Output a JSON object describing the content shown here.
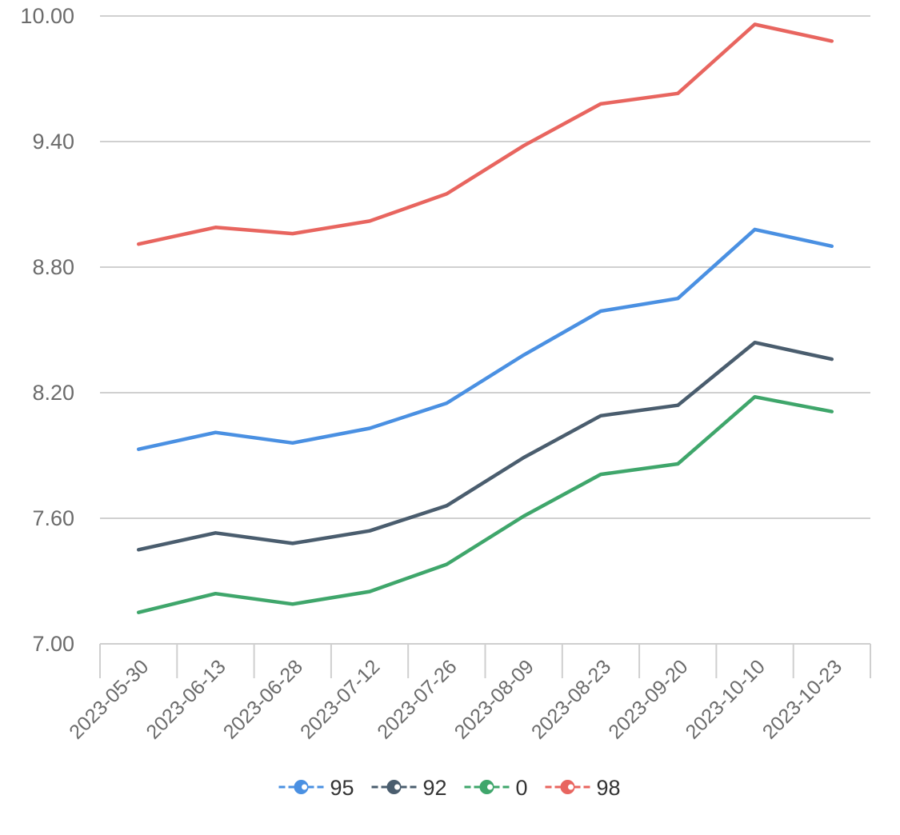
{
  "chart_data": {
    "type": "line",
    "title": "",
    "xlabel": "",
    "ylabel": "",
    "categories": [
      "2023-05-30",
      "2023-06-13",
      "2023-06-28",
      "2023-07-12",
      "2023-07-26",
      "2023-08-09",
      "2023-08-23",
      "2023-09-20",
      "2023-10-10",
      "2023-10-23"
    ],
    "ylim": [
      7.0,
      10.0
    ],
    "yticks": [
      "7.00",
      "7.60",
      "8.20",
      "8.80",
      "9.40",
      "10.00"
    ],
    "grid": true,
    "legend_position": "bottom",
    "series": [
      {
        "name": "95",
        "color": "#4a90e2",
        "values": [
          7.93,
          8.01,
          7.96,
          8.03,
          8.15,
          8.38,
          8.59,
          8.65,
          8.98,
          8.9
        ]
      },
      {
        "name": "92",
        "color": "#4a5d6e",
        "values": [
          7.45,
          7.53,
          7.48,
          7.54,
          7.66,
          7.89,
          8.09,
          8.14,
          8.44,
          8.36
        ]
      },
      {
        "name": "0",
        "color": "#3fa66b",
        "values": [
          7.15,
          7.24,
          7.19,
          7.25,
          7.38,
          7.61,
          7.81,
          7.86,
          8.18,
          8.11
        ]
      },
      {
        "name": "98",
        "color": "#e8655f",
        "values": [
          8.91,
          8.99,
          8.96,
          9.02,
          9.15,
          9.38,
          9.58,
          9.63,
          9.96,
          9.88
        ]
      }
    ]
  }
}
